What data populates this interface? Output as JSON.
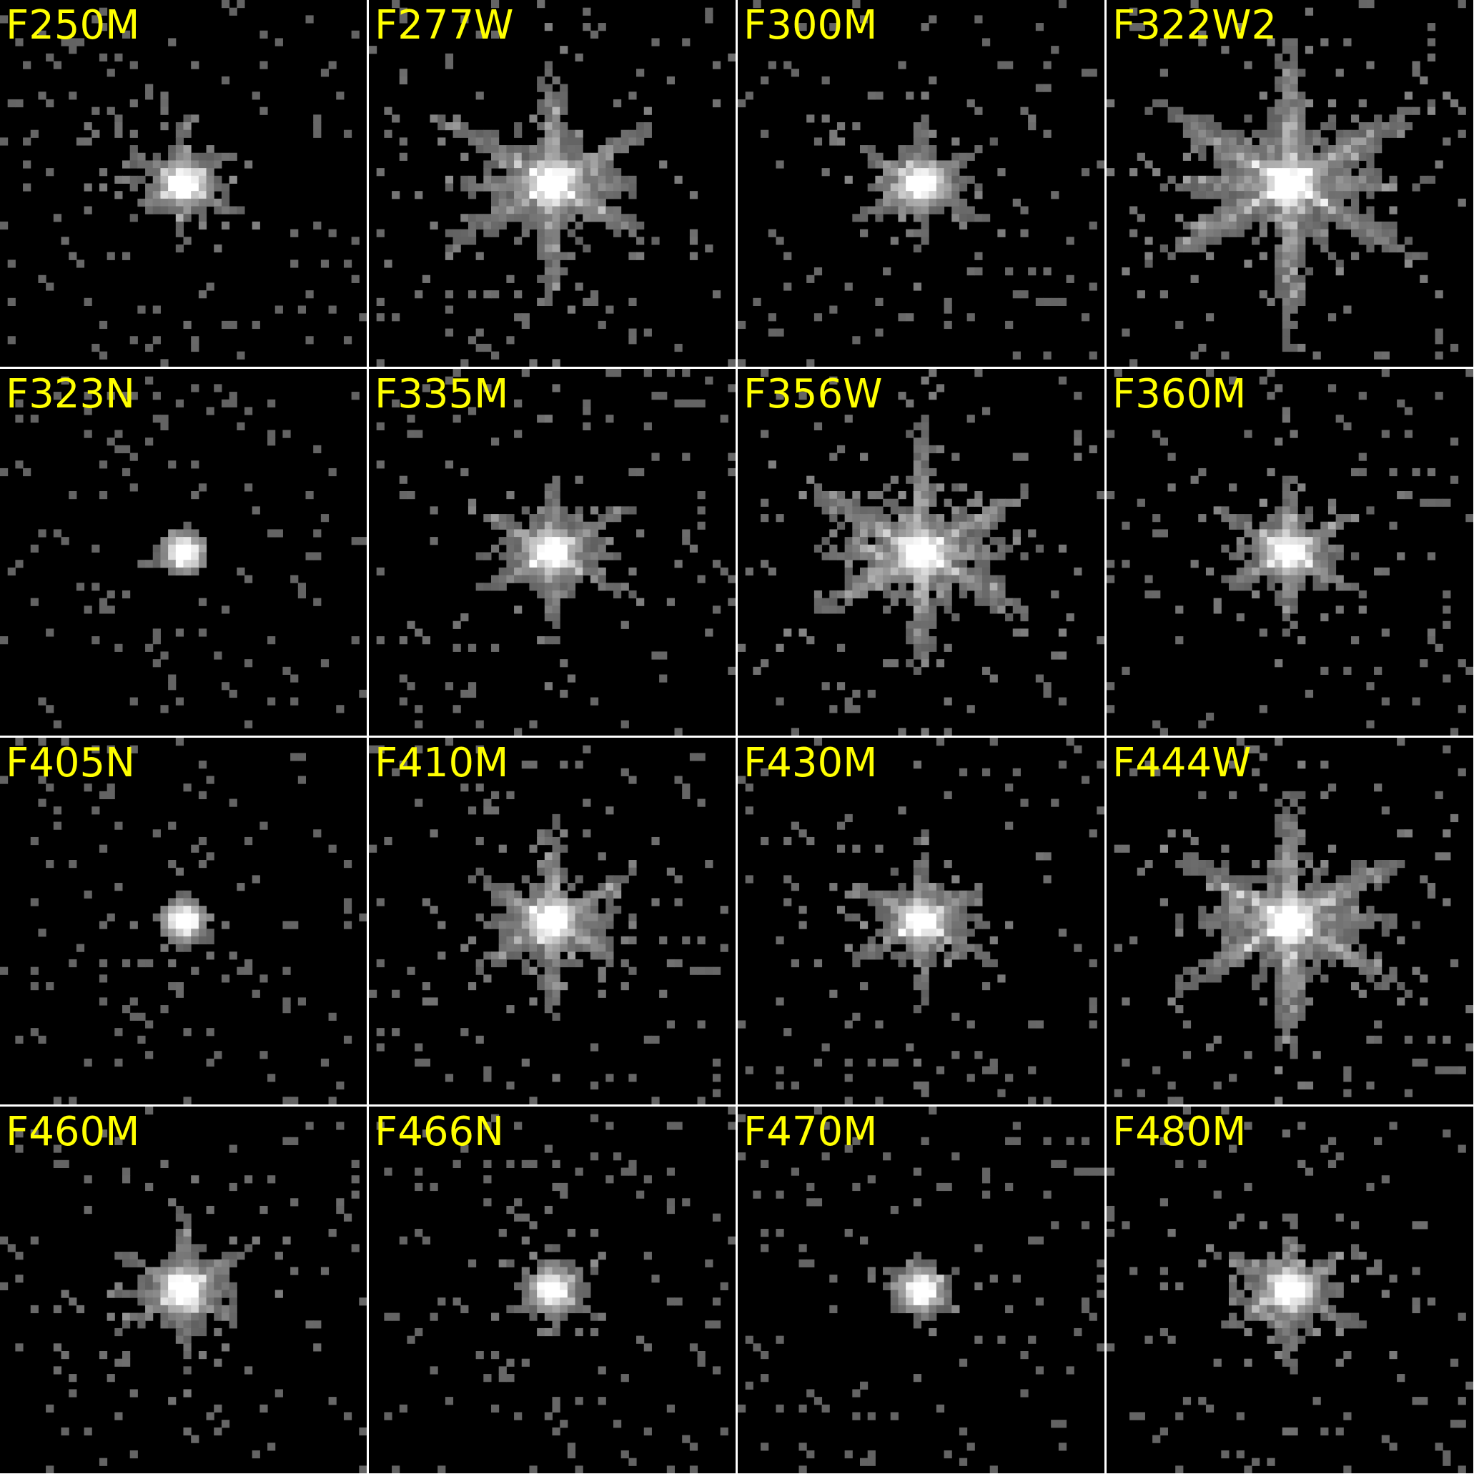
{
  "panels": [
    {
      "label": "F250M"
    },
    {
      "label": "F277W"
    },
    {
      "label": "F300M"
    },
    {
      "label": "F322W2"
    },
    {
      "label": "F323N"
    },
    {
      "label": "F335M"
    },
    {
      "label": "F356W"
    },
    {
      "label": "F360M"
    },
    {
      "label": "F405N"
    },
    {
      "label": "F410M"
    },
    {
      "label": "F430M"
    },
    {
      "label": "F444W"
    },
    {
      "label": "F460M"
    },
    {
      "label": "F466N"
    },
    {
      "label": "F470M"
    },
    {
      "label": "F480M"
    }
  ]
}
